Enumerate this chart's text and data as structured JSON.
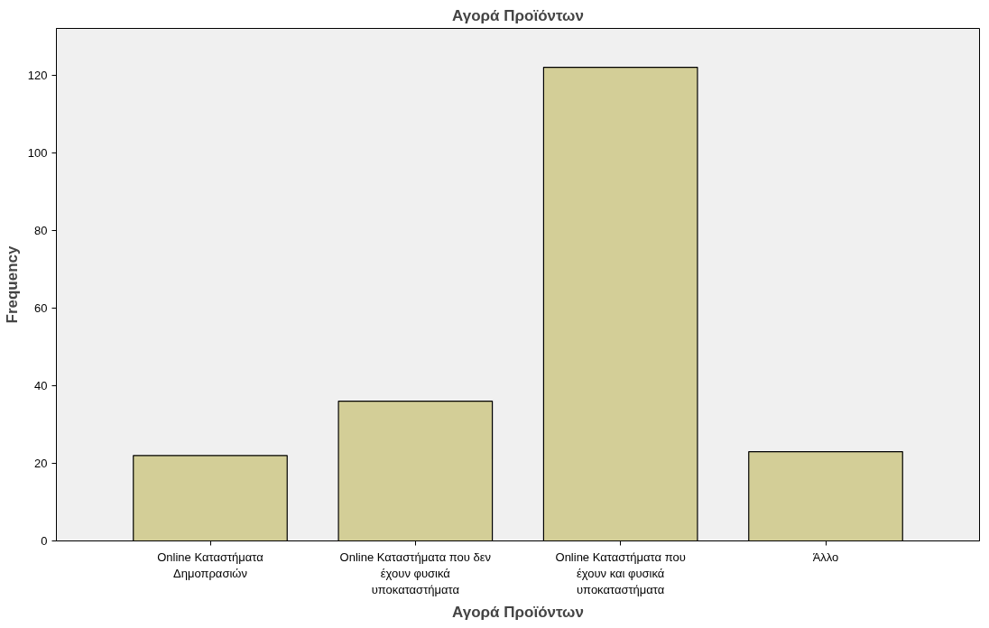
{
  "chart_data": {
    "type": "bar",
    "title": "Αγορά Προϊόντων",
    "xlabel": "Αγορά Προϊόντων",
    "ylabel": "Frequency",
    "categories": [
      "Online Καταστήματα Δημοπρασιών",
      "Online Καταστήματα που δεν έχουν φυσικά υποκαταστήματα",
      "Online Καταστήματα που έχουν και φυσικά υποκαταστήματα",
      "Άλλο"
    ],
    "values": [
      22,
      36,
      122,
      23
    ],
    "color": "#d3ce97",
    "ylim": [
      0,
      132
    ],
    "yticks": [
      0,
      20,
      40,
      60,
      80,
      100,
      120
    ],
    "grid": false
  }
}
